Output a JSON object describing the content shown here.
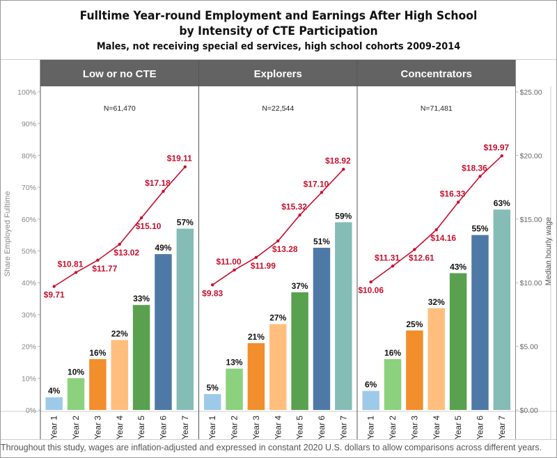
{
  "chart_data": {
    "type": "bar",
    "title": "Fulltime Year-round Employment and Earnings After High School",
    "title_line2": "by Intensity of CTE Participation",
    "subtitle": "Males, not receiving special ed services, high school cohorts 2009-2014",
    "categories": [
      "Year 1",
      "Year 2",
      "Year 3",
      "Year 4",
      "Year 5",
      "Year 6",
      "Year 7"
    ],
    "ylabel": "Share Employed Fulltime",
    "y2label": "Median hourly wage",
    "ylim": [
      0,
      100
    ],
    "y2lim": [
      0,
      25
    ],
    "yticks": [
      "0%",
      "10%",
      "20%",
      "30%",
      "40%",
      "50%",
      "60%",
      "70%",
      "80%",
      "90%",
      "100%"
    ],
    "y2ticks": [
      "$0.00",
      "$5.00",
      "$10.00",
      "$15.00",
      "$20.00",
      "$25.00"
    ],
    "bar_colors": [
      "#9ecae9",
      "#8cd17d",
      "#f28e2b",
      "#ffbe7d",
      "#59a14f",
      "#4e79a7",
      "#86bcb6"
    ],
    "line_color": "#c8102e",
    "header_color": "#636363",
    "panels": [
      {
        "name": "Low or no CTE",
        "n_label": "N=61,470",
        "share": [
          4,
          10,
          16,
          22,
          33,
          49,
          57
        ],
        "share_labels": [
          "4%",
          "10%",
          "16%",
          "22%",
          "33%",
          "49%",
          "57%"
        ],
        "wage": [
          9.71,
          10.81,
          11.77,
          13.02,
          15.1,
          17.18,
          19.11
        ],
        "wage_labels": [
          "$9.71",
          "$10.81",
          "$11.77",
          "$13.02",
          "$15.10",
          "$17.18",
          "$19.11"
        ]
      },
      {
        "name": "Explorers",
        "n_label": "N=22,544",
        "share": [
          5,
          13,
          21,
          27,
          37,
          51,
          59
        ],
        "share_labels": [
          "5%",
          "13%",
          "21%",
          "27%",
          "37%",
          "51%",
          "59%"
        ],
        "wage": [
          9.83,
          11.0,
          11.99,
          13.28,
          15.32,
          17.1,
          18.92
        ],
        "wage_labels": [
          "$9.83",
          "$11.00",
          "$11.99",
          "$13.28",
          "$15.32",
          "$17.10",
          "$18.92"
        ]
      },
      {
        "name": "Concentrators",
        "n_label": "N=71,481",
        "share": [
          6,
          16,
          25,
          32,
          43,
          55,
          63
        ],
        "share_labels": [
          "6%",
          "16%",
          "25%",
          "32%",
          "43%",
          "55%",
          "63%"
        ],
        "wage": [
          10.06,
          11.31,
          12.61,
          14.16,
          16.33,
          18.36,
          19.97
        ],
        "wage_labels": [
          "$10.06",
          "$11.31",
          "$12.61",
          "$14.16",
          "$16.33",
          "$18.36",
          "$19.97"
        ]
      }
    ]
  },
  "footer": "Throughout this study, wages are inflation-adjusted and expressed in constant 2020 U.S. dollars to allow comparisons across different years."
}
